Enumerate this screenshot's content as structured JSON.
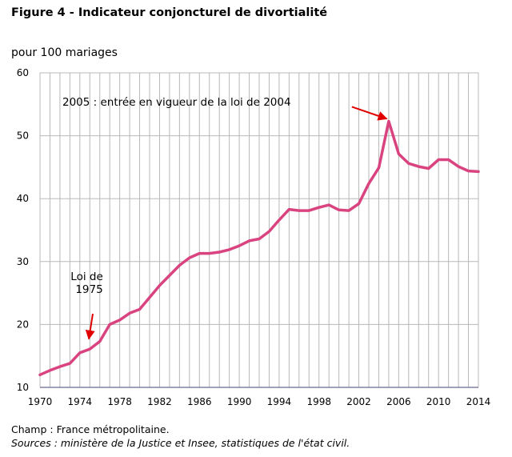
{
  "title": "Figure 4 - Indicateur conjoncturel de divortialité",
  "ylabel": "pour 100 mariages",
  "footnotes": {
    "champ": "Champ : France métropolitaine.",
    "sources": "Sources : ministère de la Justice et Insee, statistiques de l'état civil."
  },
  "colors": {
    "line": "#d9437f",
    "grid": "#b8b8b8",
    "xaxis": "#8080a0",
    "arrow": "#e00000"
  },
  "chart_data": {
    "type": "line",
    "xlim": [
      1970,
      2014
    ],
    "ylim": [
      10,
      60
    ],
    "grid": true,
    "xticks": [
      1970,
      1974,
      1978,
      1982,
      1986,
      1990,
      1994,
      1998,
      2002,
      2006,
      2010,
      2014
    ],
    "yticks": [
      10,
      20,
      30,
      40,
      50,
      60
    ],
    "x": [
      1970,
      1971,
      1972,
      1973,
      1974,
      1975,
      1976,
      1977,
      1978,
      1979,
      1980,
      1981,
      1982,
      1983,
      1984,
      1985,
      1986,
      1987,
      1988,
      1989,
      1990,
      1991,
      1992,
      1993,
      1994,
      1995,
      1996,
      1997,
      1998,
      1999,
      2000,
      2001,
      2002,
      2003,
      2004,
      2005,
      2006,
      2007,
      2008,
      2009,
      2010,
      2011,
      2012,
      2013,
      2014
    ],
    "series": [
      {
        "values": [
          12.0,
          12.7,
          13.3,
          13.8,
          15.5,
          16.1,
          17.3,
          20.0,
          20.7,
          21.8,
          22.4,
          24.3,
          26.2,
          27.8,
          29.4,
          30.6,
          31.3,
          31.3,
          31.5,
          31.9,
          32.5,
          33.3,
          33.6,
          34.8,
          36.6,
          38.3,
          38.1,
          38.1,
          38.6,
          39.0,
          38.2,
          38.1,
          39.2,
          42.4,
          44.9,
          52.3,
          47.1,
          45.6,
          45.1,
          44.8,
          46.2,
          46.2,
          45.1,
          44.4,
          44.3
        ]
      }
    ],
    "annotations": [
      {
        "text_lines": [
          "Loi de",
          "1975"
        ],
        "x": 1975
      },
      {
        "text_lines": [
          "2005 : entrée en vigueur de la loi de 2004"
        ],
        "x": 2005
      }
    ]
  }
}
